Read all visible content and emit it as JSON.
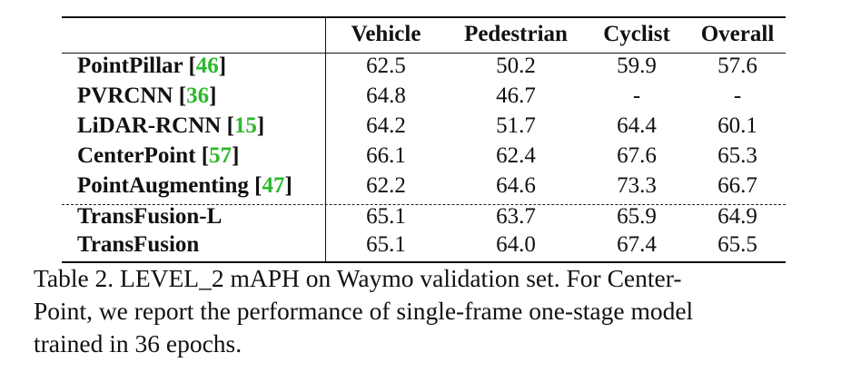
{
  "table": {
    "columns": [
      "Vehicle",
      "Pedestrian",
      "Cyclist",
      "Overall"
    ],
    "rows": [
      {
        "method": "PointPillar",
        "cite": "46",
        "values": [
          "62.5",
          "50.2",
          "59.9",
          "57.6"
        ]
      },
      {
        "method": "PVRCNN",
        "cite": "36",
        "values": [
          "64.8",
          "46.7",
          "-",
          "-"
        ]
      },
      {
        "method": "LiDAR-RCNN",
        "cite": "15",
        "values": [
          "64.2",
          "51.7",
          "64.4",
          "60.1"
        ]
      },
      {
        "method": "CenterPoint",
        "cite": "57",
        "values": [
          "66.1",
          "62.4",
          "67.6",
          "65.3"
        ]
      },
      {
        "method": "PointAugmenting",
        "cite": "47",
        "values": [
          "62.2",
          "64.6",
          "73.3",
          "66.7"
        ]
      },
      {
        "method": "TransFusion-L",
        "cite": "",
        "values": [
          "65.1",
          "63.7",
          "65.9",
          "64.9"
        ]
      },
      {
        "method": "TransFusion",
        "cite": "",
        "values": [
          "65.1",
          "64.0",
          "67.4",
          "65.5"
        ]
      }
    ]
  },
  "caption": {
    "line1": "Table 2. LEVEL_2 mAPH on Waymo validation set. For Center-",
    "line2": "Point, we report the performance of single-frame one-stage model",
    "line3": "trained in 36 epochs."
  },
  "colors": {
    "citation": "#2db82d"
  }
}
